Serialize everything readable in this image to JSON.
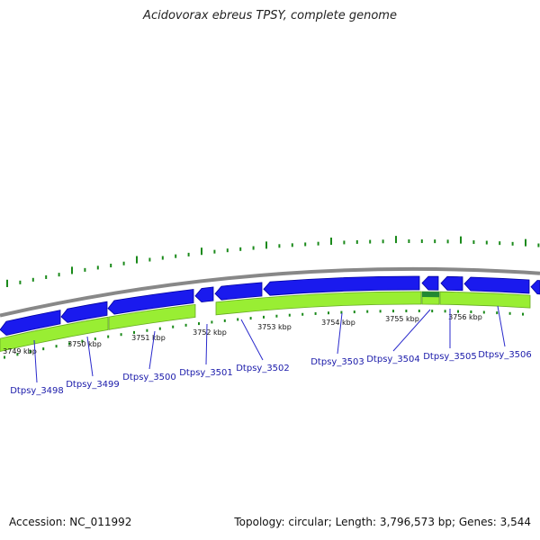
{
  "title": "Acidovorax ebreus TPSY, complete genome",
  "footer": {
    "accession": "Accession: NC_011992",
    "summary": "Topology: circular; Length: 3,796,573 bp; Genes: 3,544"
  },
  "colors": {
    "background": "#ffffff",
    "backbone": "#888888",
    "gene_forward": "#1a1aee",
    "gene_forward_outline": "#0000a0",
    "gene_reverse": "#99ee33",
    "gene_reverse_outline": "#66aa22",
    "gene_highlight": "#228833",
    "gc_skew_tick": "#1a8a1a",
    "gene_label": "#1a1aaa",
    "pointer_line": "#2a2acc",
    "scale_text": "#111111"
  },
  "scale_labels": [
    "3749 kbp",
    "3750 kbp",
    "3751 kbp",
    "3752 kbp",
    "3753 kbp",
    "3754 kbp",
    "3755 kbp",
    "3756 kbp"
  ],
  "gene_labels": [
    "Dtpsy_3498",
    "Dtpsy_3499",
    "Dtpsy_3500",
    "Dtpsy_3501",
    "Dtpsy_3502",
    "Dtpsy_3503",
    "Dtpsy_3504",
    "Dtpsy_3505",
    "Dtpsy_3506"
  ]
}
